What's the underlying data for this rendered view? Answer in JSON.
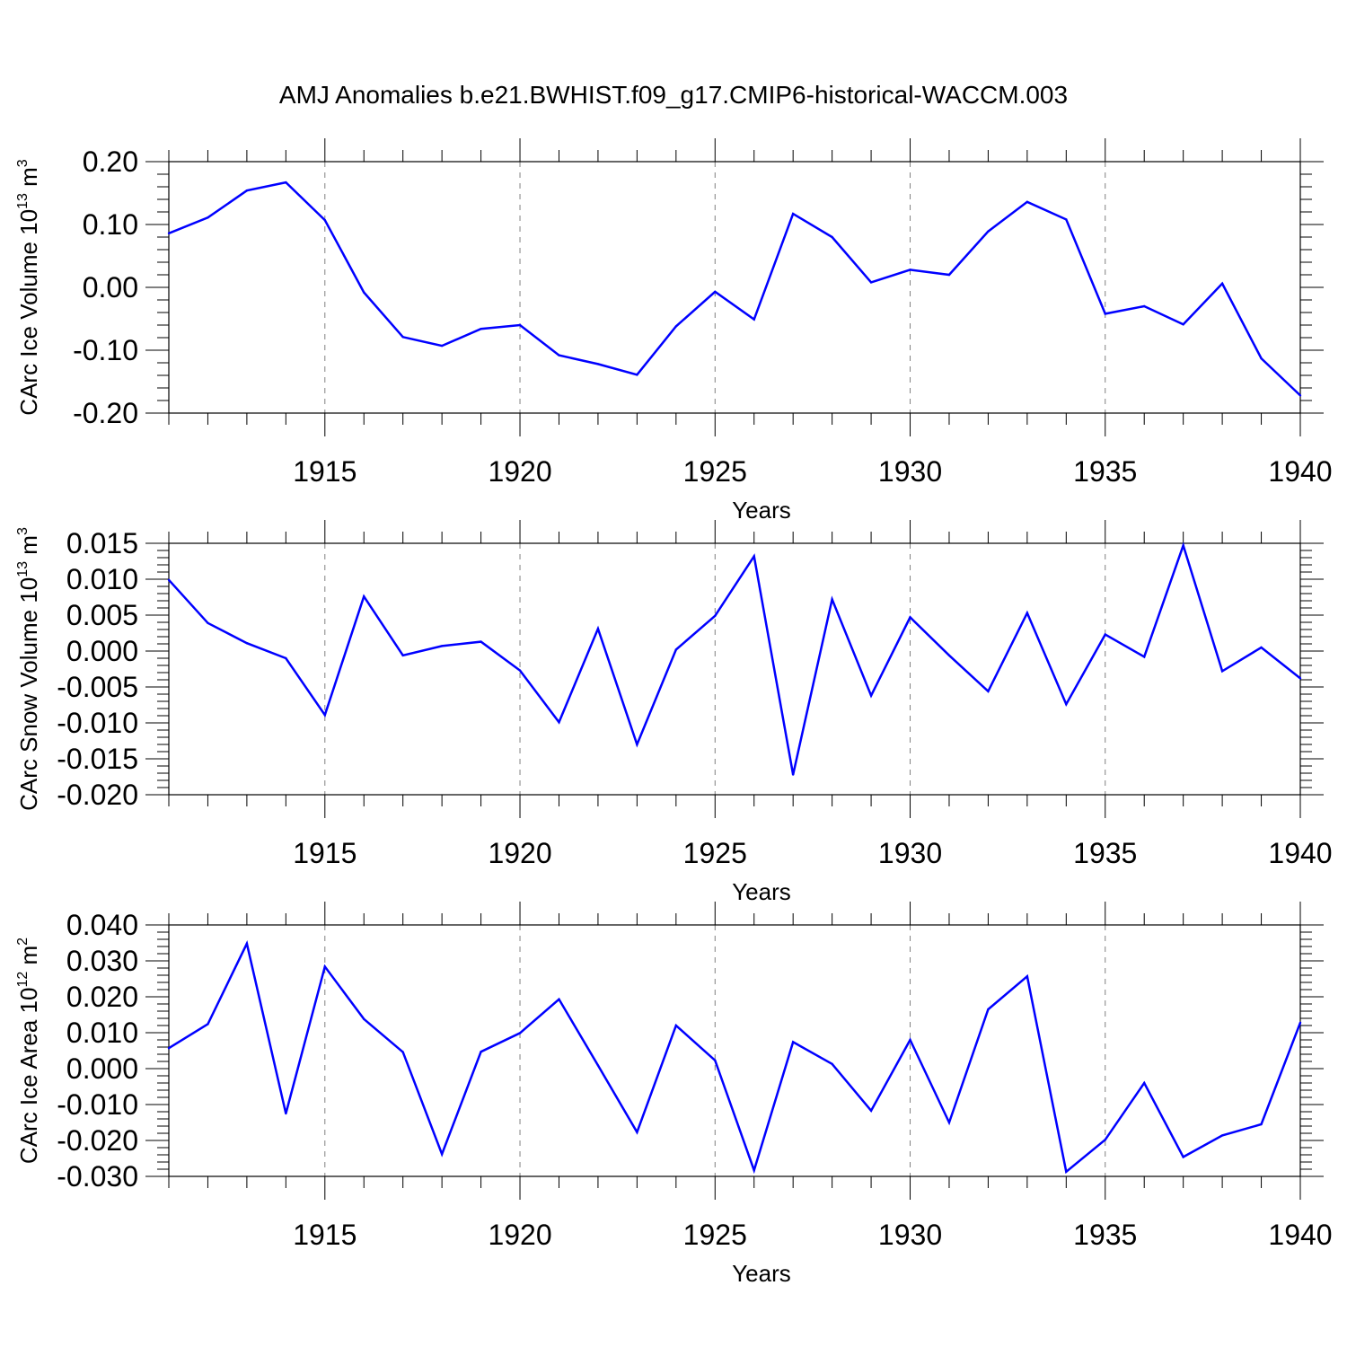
{
  "figure_title": "AMJ Anomalies b.e21.BWHIST.f09_g17.CMIP6-historical-WACCM.003",
  "line_color": "#0000ff",
  "chart_data": [
    {
      "type": "line",
      "title": "AMJ Anomalies b.e21.BWHIST.f09_g17.CMIP6-historical-WACCM.003",
      "ylabel": {
        "text": "CArc Ice Volume 10",
        "exp": "13",
        "unit": " m",
        "unit_exp": "3"
      },
      "xlabel": "Years",
      "xlim": [
        1911,
        1940
      ],
      "ylim": [
        -0.2,
        0.2
      ],
      "yticks": [
        -0.2,
        -0.1,
        0.0,
        0.1,
        0.2
      ],
      "ytick_labels": [
        "-0.20",
        "-0.10",
        "0.00",
        "0.10",
        "0.20"
      ],
      "yminor_step": 0.02,
      "xticks": [
        1915,
        1920,
        1925,
        1930,
        1935,
        1940
      ],
      "xtick_labels": [
        "1915",
        "1920",
        "1925",
        "1930",
        "1935",
        "1940"
      ],
      "x": [
        1911,
        1912,
        1913,
        1914,
        1915,
        1916,
        1917,
        1918,
        1919,
        1920,
        1921,
        1922,
        1923,
        1924,
        1925,
        1926,
        1927,
        1928,
        1929,
        1930,
        1931,
        1932,
        1933,
        1934,
        1935,
        1936,
        1937,
        1938,
        1939,
        1940
      ],
      "values": [
        0.086,
        0.111,
        0.154,
        0.167,
        0.107,
        -0.008,
        -0.079,
        -0.093,
        -0.066,
        -0.06,
        -0.108,
        -0.122,
        -0.139,
        -0.062,
        -0.007,
        -0.051,
        0.117,
        0.08,
        0.008,
        0.028,
        0.02,
        0.089,
        0.136,
        0.108,
        -0.042,
        -0.03,
        -0.059,
        0.006,
        -0.113,
        -0.172
      ]
    },
    {
      "type": "line",
      "ylabel": {
        "text": "CArc Snow Volume 10",
        "exp": "13",
        "unit": " m",
        "unit_exp": "3"
      },
      "xlabel": "Years",
      "xlim": [
        1911,
        1940
      ],
      "ylim": [
        -0.02,
        0.015
      ],
      "yticks": [
        -0.02,
        -0.015,
        -0.01,
        -0.005,
        0.0,
        0.005,
        0.01,
        0.015
      ],
      "ytick_labels": [
        "-0.020",
        "-0.015",
        "-0.010",
        "-0.005",
        "0.000",
        "0.005",
        "0.010",
        "0.015"
      ],
      "yminor_step": 0.001,
      "xticks": [
        1915,
        1920,
        1925,
        1930,
        1935,
        1940
      ],
      "xtick_labels": [
        "1915",
        "1920",
        "1925",
        "1930",
        "1935",
        "1940"
      ],
      "x": [
        1911,
        1912,
        1913,
        1914,
        1915,
        1916,
        1917,
        1918,
        1919,
        1920,
        1921,
        1922,
        1923,
        1924,
        1925,
        1926,
        1927,
        1928,
        1929,
        1930,
        1931,
        1932,
        1933,
        1934,
        1935,
        1936,
        1937,
        1938,
        1939,
        1940
      ],
      "values": [
        0.0099,
        0.0039,
        0.0011,
        -0.001,
        -0.0089,
        0.0076,
        -0.0006,
        0.0007,
        0.0013,
        -0.0027,
        -0.0099,
        0.0031,
        -0.013,
        0.0002,
        0.0049,
        0.0132,
        -0.0172,
        0.0072,
        -0.0062,
        0.0047,
        -0.0006,
        -0.0056,
        0.0053,
        -0.0074,
        0.0023,
        -0.0008,
        0.0147,
        -0.0028,
        0.0005,
        -0.0038
      ]
    },
    {
      "type": "line",
      "ylabel": {
        "text": "CArc Ice Area 10",
        "exp": "12",
        "unit": " m",
        "unit_exp": "2"
      },
      "xlabel": "Years",
      "xlim": [
        1911,
        1940
      ],
      "ylim": [
        -0.03,
        0.04
      ],
      "yticks": [
        -0.03,
        -0.02,
        -0.01,
        0.0,
        0.01,
        0.02,
        0.03,
        0.04
      ],
      "ytick_labels": [
        "-0.030",
        "-0.020",
        "-0.010",
        "0.000",
        "0.010",
        "0.020",
        "0.030",
        "0.040"
      ],
      "yminor_step": 0.002,
      "xticks": [
        1915,
        1920,
        1925,
        1930,
        1935,
        1940
      ],
      "xtick_labels": [
        "1915",
        "1920",
        "1925",
        "1930",
        "1935",
        "1940"
      ],
      "x": [
        1911,
        1912,
        1913,
        1914,
        1915,
        1916,
        1917,
        1918,
        1919,
        1920,
        1921,
        1922,
        1923,
        1924,
        1925,
        1926,
        1927,
        1928,
        1929,
        1930,
        1931,
        1932,
        1933,
        1934,
        1935,
        1936,
        1937,
        1938,
        1939,
        1940
      ],
      "values": [
        0.0057,
        0.0124,
        0.0348,
        -0.0125,
        0.0284,
        0.0138,
        0.0046,
        -0.0238,
        0.0047,
        0.0099,
        0.0193,
        0.0009,
        -0.0177,
        0.012,
        0.0023,
        -0.0283,
        0.0074,
        0.0013,
        -0.0117,
        0.008,
        -0.015,
        0.0165,
        0.0257,
        -0.0287,
        -0.0198,
        -0.004,
        -0.0246,
        -0.0186,
        -0.0155,
        0.0128
      ]
    }
  ]
}
